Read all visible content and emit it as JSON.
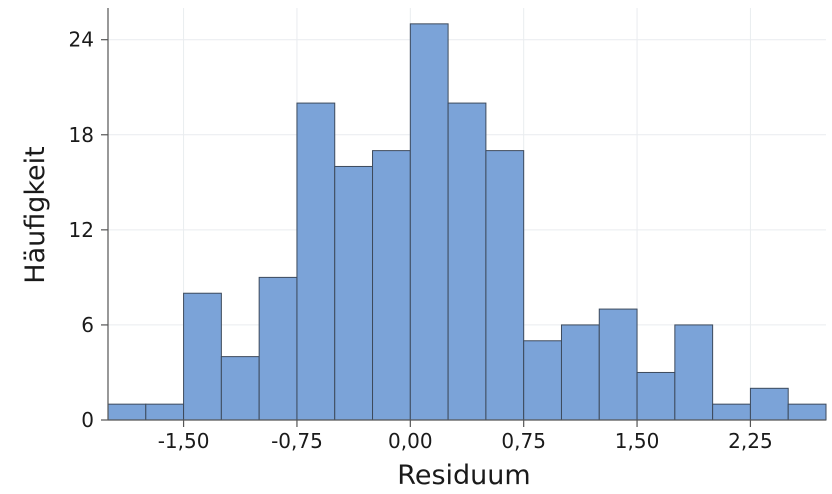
{
  "chart_data": {
    "type": "bar",
    "title": "",
    "xlabel": "Residuum",
    "ylabel": "Häufigkeit",
    "bin_width": 0.25,
    "bins": [
      {
        "left": -2.0,
        "right": -1.75,
        "count": 1
      },
      {
        "left": -1.75,
        "right": -1.5,
        "count": 1
      },
      {
        "left": -1.5,
        "right": -1.25,
        "count": 8
      },
      {
        "left": -1.25,
        "right": -1.0,
        "count": 4
      },
      {
        "left": -1.0,
        "right": -0.75,
        "count": 9
      },
      {
        "left": -0.75,
        "right": -0.5,
        "count": 20
      },
      {
        "left": -0.5,
        "right": -0.25,
        "count": 16
      },
      {
        "left": -0.25,
        "right": 0.0,
        "count": 17
      },
      {
        "left": 0.0,
        "right": 0.25,
        "count": 25
      },
      {
        "left": 0.25,
        "right": 0.5,
        "count": 20
      },
      {
        "left": 0.5,
        "right": 0.75,
        "count": 17
      },
      {
        "left": 0.75,
        "right": 1.0,
        "count": 5
      },
      {
        "left": 1.0,
        "right": 1.25,
        "count": 6
      },
      {
        "left": 1.25,
        "right": 1.5,
        "count": 7
      },
      {
        "left": 1.5,
        "right": 1.75,
        "count": 3
      },
      {
        "left": 1.75,
        "right": 2.0,
        "count": 6
      },
      {
        "left": 2.0,
        "right": 2.25,
        "count": 1
      },
      {
        "left": 2.25,
        "right": 2.5,
        "count": 2
      },
      {
        "left": 2.5,
        "right": 2.75,
        "count": 1
      }
    ],
    "xlim": [
      -2.0,
      2.75
    ],
    "ylim": [
      0,
      26
    ],
    "x_ticks": [
      -1.5,
      -0.75,
      0.0,
      0.75,
      1.5,
      2.25
    ],
    "x_tick_labels": [
      "-1,50",
      "-0,75",
      "0,00",
      "0,75",
      "1,50",
      "2,25"
    ],
    "y_ticks": [
      0,
      6,
      12,
      18,
      24
    ],
    "y_tick_labels": [
      "0",
      "6",
      "12",
      "18",
      "24"
    ],
    "grid": true,
    "legend": "none",
    "colors": {
      "bar_fill": "#7ba3d8",
      "bar_edge": "#3d4a5c",
      "grid": "#e9ecef",
      "axis": "#555555"
    }
  }
}
